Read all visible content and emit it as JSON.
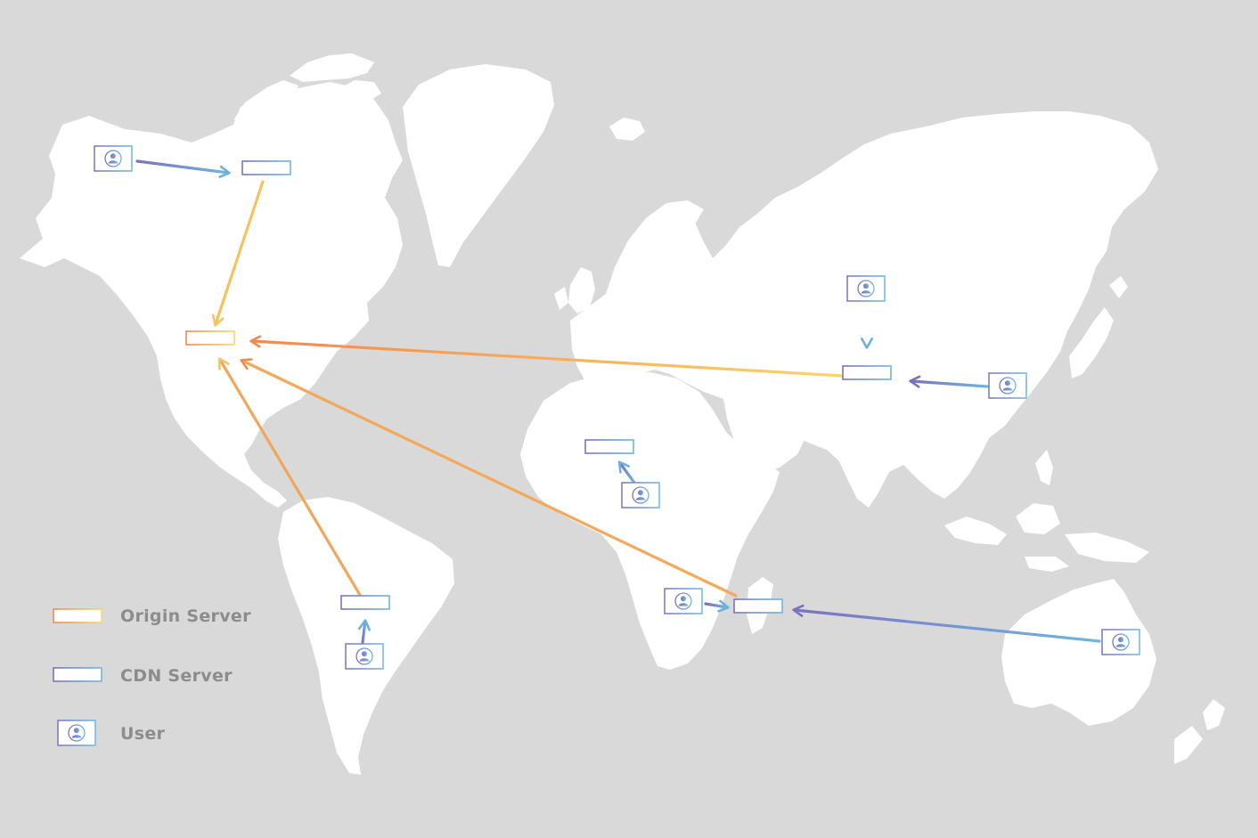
{
  "legend": {
    "origin_label": "Origin Server",
    "cdn_label": "CDN Server",
    "user_label": "User"
  },
  "colors": {
    "background": "#d9d9d9",
    "land": "#ffffff",
    "origin_start": "#f0894e",
    "origin_end": "#fbd46a",
    "cdn_start": "#7b72c0",
    "cdn_end": "#6eb6e0",
    "legend_text": "#8c8c8c"
  },
  "icons": {
    "origin": "server-rack-icon",
    "cdn": "server-rack-icon",
    "user": "laptop-user-icon"
  }
}
